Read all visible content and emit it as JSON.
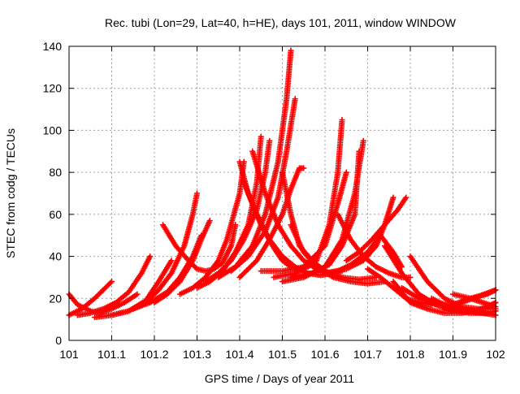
{
  "chart_data": {
    "type": "scatter",
    "title": "Rec. tubi (Lon=29, Lat=40, h=HE), days 101, 2011, window WINDOW",
    "xlabel": "GPS time / Days of year 2011",
    "ylabel": "STEC from codg / TECUs",
    "xlim": [
      101,
      102
    ],
    "ylim": [
      0,
      140
    ],
    "xticks": [
      101,
      101.1,
      101.2,
      101.3,
      101.4,
      101.5,
      101.6,
      101.7,
      101.8,
      101.9,
      102
    ],
    "xtick_labels": [
      "101",
      "101.1",
      "101.2",
      "101.3",
      "101.4",
      "101.5",
      "101.6",
      "101.7",
      "101.8",
      "101.9",
      "102"
    ],
    "yticks": [
      0,
      20,
      40,
      60,
      80,
      100,
      120,
      140
    ],
    "ytick_labels": [
      "0",
      "20",
      "40",
      "60",
      "80",
      "100",
      "120",
      "140"
    ],
    "grid": true,
    "marker": "+",
    "color": "#ff0000",
    "series": [
      {
        "x": [
          101.0,
          101.02,
          101.05,
          101.07,
          101.1,
          101.13,
          101.16
        ],
        "y": [
          22,
          17,
          14,
          13,
          15,
          18,
          22
        ]
      },
      {
        "x": [
          101.0,
          101.03,
          101.06,
          101.08,
          101.1
        ],
        "y": [
          12,
          15,
          20,
          24,
          28
        ]
      },
      {
        "x": [
          101.02,
          101.05,
          101.08,
          101.11,
          101.14,
          101.17,
          101.19
        ],
        "y": [
          12,
          13,
          15,
          18,
          23,
          32,
          40
        ]
      },
      {
        "x": [
          101.06,
          101.1,
          101.14,
          101.18,
          101.21,
          101.24
        ],
        "y": [
          11,
          12,
          14,
          19,
          28,
          38
        ]
      },
      {
        "x": [
          101.1,
          101.14,
          101.18,
          101.21,
          101.24,
          101.27,
          101.29,
          101.3
        ],
        "y": [
          12,
          14,
          18,
          24,
          32,
          45,
          60,
          70
        ]
      },
      {
        "x": [
          101.15,
          101.19,
          101.23,
          101.26,
          101.29,
          101.31
        ],
        "y": [
          15,
          18,
          23,
          30,
          40,
          50
        ]
      },
      {
        "x": [
          101.2,
          101.23,
          101.26,
          101.29,
          101.31,
          101.33
        ],
        "y": [
          18,
          22,
          28,
          38,
          48,
          57
        ]
      },
      {
        "x": [
          101.22,
          101.25,
          101.28,
          101.3,
          101.32,
          101.34,
          101.36,
          101.38,
          101.39
        ],
        "y": [
          55,
          45,
          38,
          34,
          33,
          34,
          37,
          45,
          55
        ]
      },
      {
        "x": [
          101.26,
          101.29,
          101.32,
          101.35,
          101.37,
          101.4,
          101.41
        ],
        "y": [
          22,
          25,
          30,
          38,
          48,
          70,
          85
        ]
      },
      {
        "x": [
          101.3,
          101.33,
          101.36,
          101.39,
          101.42,
          101.44,
          101.45
        ],
        "y": [
          25,
          28,
          33,
          42,
          55,
          75,
          97
        ]
      },
      {
        "x": [
          101.32,
          101.35,
          101.38,
          101.41,
          101.44,
          101.46,
          101.47
        ],
        "y": [
          28,
          32,
          38,
          48,
          62,
          80,
          95
        ]
      },
      {
        "x": [
          101.4,
          101.42,
          101.45,
          101.48,
          101.5,
          101.52,
          101.54,
          101.56,
          101.58
        ],
        "y": [
          85,
          70,
          55,
          44,
          38,
          35,
          34,
          35,
          38
        ]
      },
      {
        "x": [
          101.41,
          101.44,
          101.47,
          101.5,
          101.53,
          101.56,
          101.59,
          101.62
        ],
        "y": [
          75,
          60,
          48,
          40,
          35,
          32,
          31,
          32
        ]
      },
      {
        "x": [
          101.43,
          101.46,
          101.49,
          101.52,
          101.55,
          101.58,
          101.61,
          101.64
        ],
        "y": [
          90,
          70,
          55,
          45,
          38,
          34,
          32,
          33
        ]
      },
      {
        "x": [
          101.35,
          101.39,
          101.43,
          101.46,
          101.49,
          101.51,
          101.52
        ],
        "y": [
          30,
          35,
          45,
          60,
          85,
          115,
          138
        ]
      },
      {
        "x": [
          101.38,
          101.42,
          101.46,
          101.49,
          101.51,
          101.53
        ],
        "y": [
          33,
          40,
          52,
          68,
          90,
          115
        ]
      },
      {
        "x": [
          101.4,
          101.44,
          101.47,
          101.5,
          101.52,
          101.54,
          101.55
        ],
        "y": [
          30,
          38,
          48,
          60,
          72,
          82,
          82
        ]
      },
      {
        "x": [
          101.5,
          101.52,
          101.54,
          101.57,
          101.6,
          101.64,
          101.68,
          101.72
        ],
        "y": [
          80,
          60,
          45,
          38,
          33,
          30,
          29,
          30
        ]
      },
      {
        "x": [
          101.52,
          101.55,
          101.58,
          101.62,
          101.66,
          101.7,
          101.74
        ],
        "y": [
          55,
          42,
          35,
          30,
          28,
          27,
          28
        ]
      },
      {
        "x": [
          101.45,
          101.5,
          101.55,
          101.6,
          101.63,
          101.65
        ],
        "y": [
          33,
          33,
          35,
          45,
          65,
          80
        ]
      },
      {
        "x": [
          101.48,
          101.53,
          101.58,
          101.61,
          101.63,
          101.64
        ],
        "y": [
          30,
          32,
          38,
          55,
          80,
          105
        ]
      },
      {
        "x": [
          101.5,
          101.55,
          101.6,
          101.64,
          101.67,
          101.69
        ],
        "y": [
          28,
          30,
          35,
          48,
          70,
          95
        ]
      },
      {
        "x": [
          101.52,
          101.57,
          101.61,
          101.64,
          101.67,
          101.68
        ],
        "y": [
          30,
          32,
          36,
          45,
          60,
          90
        ]
      },
      {
        "x": [
          101.63,
          101.66,
          101.69,
          101.72,
          101.75,
          101.78,
          101.8
        ],
        "y": [
          60,
          48,
          40,
          35,
          32,
          30,
          30
        ]
      },
      {
        "x": [
          101.6,
          101.65,
          101.69,
          101.72,
          101.74,
          101.76
        ],
        "y": [
          32,
          34,
          38,
          45,
          55,
          68
        ]
      },
      {
        "x": [
          101.65,
          101.68,
          101.71,
          101.74,
          101.77,
          101.79
        ],
        "y": [
          38,
          42,
          48,
          55,
          62,
          68
        ]
      },
      {
        "x": [
          101.62,
          101.66,
          101.7,
          101.73,
          101.76,
          101.78
        ],
        "y": [
          32,
          36,
          42,
          50,
          42,
          35
        ]
      },
      {
        "x": [
          101.7,
          101.73,
          101.76,
          101.79,
          101.82,
          101.85
        ],
        "y": [
          34,
          30,
          25,
          20,
          18,
          17
        ]
      },
      {
        "x": [
          101.76,
          101.8,
          101.84,
          101.88,
          101.92,
          101.95,
          101.98,
          102.0
        ],
        "y": [
          28,
          18,
          15,
          13,
          13,
          14,
          16,
          18
        ]
      },
      {
        "x": [
          101.8,
          101.84,
          101.88,
          101.92,
          101.96,
          102.0
        ],
        "y": [
          40,
          28,
          20,
          16,
          15,
          15
        ]
      },
      {
        "x": [
          101.74,
          101.78,
          101.82,
          101.86,
          101.9,
          101.94,
          101.98,
          102.0
        ],
        "y": [
          45,
          32,
          22,
          17,
          14,
          13,
          13,
          14
        ]
      },
      {
        "x": [
          101.78,
          101.82,
          101.86,
          101.9,
          101.94,
          101.98,
          102.0
        ],
        "y": [
          25,
          20,
          17,
          17,
          20,
          22,
          24
        ]
      },
      {
        "x": [
          101.85,
          101.89,
          101.93,
          101.97,
          102.0
        ],
        "y": [
          20,
          16,
          14,
          13,
          12
        ]
      },
      {
        "x": [
          101.88,
          101.92,
          101.96,
          102.0
        ],
        "y": [
          15,
          18,
          21,
          24
        ]
      },
      {
        "x": [
          101.9,
          101.94,
          101.97,
          102.0
        ],
        "y": [
          22,
          20,
          18,
          16
        ]
      }
    ]
  }
}
